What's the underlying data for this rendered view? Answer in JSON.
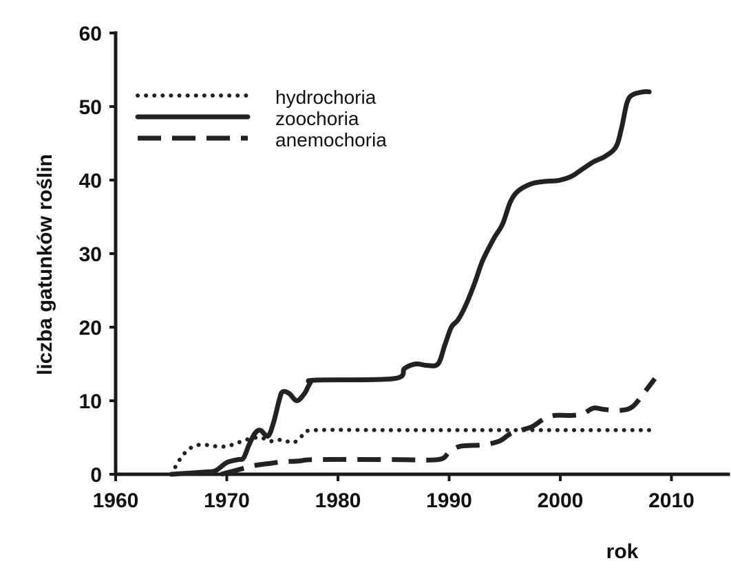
{
  "chart_data": {
    "type": "line",
    "xlabel": "rok",
    "ylabel": "liczba gatunków roślin",
    "xlim": [
      1960,
      2012
    ],
    "ylim": [
      0,
      60
    ],
    "x_ticks": [
      1960,
      1970,
      1980,
      1990,
      2000,
      2010
    ],
    "y_ticks": [
      0,
      10,
      20,
      30,
      40,
      50,
      60
    ],
    "grid": false,
    "legend_position": "top-left",
    "series": [
      {
        "name": "hydrochoria",
        "style": "dotted",
        "color": "#222222",
        "points": [
          [
            1965,
            0
          ],
          [
            1966,
            2.5
          ],
          [
            1967,
            3.8
          ],
          [
            1968,
            4
          ],
          [
            1969,
            3.8
          ],
          [
            1970,
            3.8
          ],
          [
            1971,
            4.3
          ],
          [
            1972,
            4.8
          ],
          [
            1973,
            5
          ],
          [
            1974,
            4.5
          ],
          [
            1975,
            4.7
          ],
          [
            1976,
            4.3
          ],
          [
            1977,
            5.5
          ],
          [
            1978,
            6
          ],
          [
            1985,
            6
          ],
          [
            1990,
            6
          ],
          [
            2000,
            6
          ],
          [
            2008,
            6
          ]
        ]
      },
      {
        "name": "zoochoria",
        "style": "solid",
        "color": "#222222",
        "points": [
          [
            1965,
            0
          ],
          [
            1968,
            0.3
          ],
          [
            1969,
            0.5
          ],
          [
            1970,
            1.6
          ],
          [
            1971,
            2
          ],
          [
            1971.5,
            2.2
          ],
          [
            1972,
            4
          ],
          [
            1972.5,
            5.5
          ],
          [
            1973,
            6
          ],
          [
            1973.7,
            5.2
          ],
          [
            1974.2,
            7
          ],
          [
            1974.7,
            10
          ],
          [
            1975,
            11.2
          ],
          [
            1975.6,
            11
          ],
          [
            1976.3,
            10
          ],
          [
            1977,
            11
          ],
          [
            1977.5,
            12.4
          ],
          [
            1978,
            12.8
          ],
          [
            1985,
            13
          ],
          [
            1986,
            14.4
          ],
          [
            1987,
            15
          ],
          [
            1988,
            14.8
          ],
          [
            1989,
            15
          ],
          [
            1989.6,
            17.5
          ],
          [
            1990.2,
            20
          ],
          [
            1990.8,
            21
          ],
          [
            1991.5,
            23
          ],
          [
            1992.3,
            26
          ],
          [
            1993,
            29
          ],
          [
            1994,
            32
          ],
          [
            1994.8,
            34
          ],
          [
            1995.5,
            37
          ],
          [
            1996.2,
            38.5
          ],
          [
            1997.4,
            39.5
          ],
          [
            1998.5,
            39.8
          ],
          [
            1999.5,
            39.9
          ],
          [
            2000,
            40
          ],
          [
            2001,
            40.5
          ],
          [
            2002,
            41.5
          ],
          [
            2003,
            42.5
          ],
          [
            2004,
            43.2
          ],
          [
            2005,
            44.5
          ],
          [
            2005.5,
            47
          ],
          [
            2006,
            50.5
          ],
          [
            2006.5,
            51.6
          ],
          [
            2007.5,
            52
          ],
          [
            2008,
            52
          ]
        ]
      },
      {
        "name": "anemochoria",
        "style": "dashed",
        "color": "#222222",
        "points": [
          [
            1969.5,
            0
          ],
          [
            1970.5,
            0.4
          ],
          [
            1971.5,
            0.8
          ],
          [
            1972.5,
            1.2
          ],
          [
            1974,
            1.5
          ],
          [
            1975,
            1.7
          ],
          [
            1976.5,
            1.8
          ],
          [
            1978,
            2
          ],
          [
            1985,
            2
          ],
          [
            1989,
            2
          ],
          [
            1990,
            3
          ],
          [
            1991,
            3.8
          ],
          [
            1993,
            4
          ],
          [
            1994.5,
            4.5
          ],
          [
            1995.5,
            5.5
          ],
          [
            1996.5,
            6
          ],
          [
            1997.5,
            6.5
          ],
          [
            1998.5,
            7.5
          ],
          [
            1999.5,
            8
          ],
          [
            2001,
            8
          ],
          [
            2002,
            8.2
          ],
          [
            2003,
            9
          ],
          [
            2004,
            8.8
          ],
          [
            2005.5,
            8.7
          ],
          [
            2006.5,
            9.2
          ],
          [
            2007.5,
            11
          ],
          [
            2008.5,
            13
          ]
        ]
      }
    ]
  }
}
